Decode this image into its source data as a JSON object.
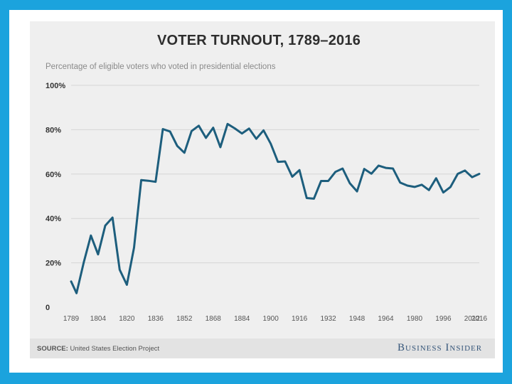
{
  "header": {
    "title": "VOTER TURNOUT, 1789–2016",
    "subtitle": "Percentage of eligible voters who voted in presidential elections"
  },
  "footer": {
    "source_label": "SOURCE:",
    "source_text": "United States Election Project",
    "brand": "Business Insider"
  },
  "colors": {
    "line": "#1d5e7d",
    "background": "#efefef",
    "frame": "#1ba3dd"
  },
  "chart_data": {
    "type": "line",
    "title": "VOTER TURNOUT, 1789–2016",
    "subtitle": "Percentage of eligible voters who voted in presidential elections",
    "xlabel": "",
    "ylabel": "",
    "ylim": [
      0,
      100
    ],
    "xlim": [
      1789,
      2016
    ],
    "grid": true,
    "yticks": [
      0,
      20,
      40,
      60,
      80,
      100
    ],
    "ytick_labels": [
      "0",
      "20%",
      "40%",
      "60%",
      "80%",
      "100%"
    ],
    "xticks": [
      1789,
      1804,
      1820,
      1836,
      1852,
      1868,
      1884,
      1900,
      1916,
      1932,
      1948,
      1964,
      1980,
      1996,
      2012,
      2016
    ],
    "xtick_labels": [
      "1789",
      "1804",
      "1820",
      "1836",
      "1852",
      "1868",
      "1884",
      "1900",
      "1916",
      "1932",
      "1948",
      "1964",
      "1980",
      "1996",
      "2012",
      "2016"
    ],
    "series": [
      {
        "name": "Voter turnout",
        "x": [
          1789,
          1792,
          1796,
          1800,
          1804,
          1808,
          1812,
          1816,
          1820,
          1824,
          1828,
          1832,
          1836,
          1840,
          1844,
          1848,
          1852,
          1856,
          1860,
          1864,
          1868,
          1872,
          1876,
          1880,
          1884,
          1888,
          1892,
          1896,
          1900,
          1904,
          1908,
          1912,
          1916,
          1920,
          1924,
          1928,
          1932,
          1936,
          1940,
          1944,
          1948,
          1952,
          1956,
          1960,
          1964,
          1968,
          1972,
          1976,
          1980,
          1984,
          1988,
          1992,
          1996,
          2000,
          2004,
          2008,
          2012,
          2016
        ],
        "values": [
          11.6,
          6.3,
          20.1,
          32.3,
          23.8,
          36.8,
          40.4,
          16.9,
          10.1,
          26.9,
          57.3,
          57.0,
          56.5,
          80.3,
          79.2,
          72.7,
          69.6,
          79.4,
          81.8,
          76.3,
          80.9,
          72.1,
          82.6,
          80.6,
          78.3,
          80.5,
          75.9,
          79.7,
          73.7,
          65.5,
          65.7,
          58.8,
          61.8,
          49.2,
          48.9,
          56.9,
          56.9,
          61.0,
          62.5,
          55.9,
          52.2,
          62.3,
          60.2,
          63.8,
          62.8,
          62.5,
          56.2,
          54.8,
          54.2,
          55.2,
          52.8,
          58.1,
          51.7,
          54.2,
          60.1,
          61.6,
          58.6,
          60.1
        ]
      }
    ]
  }
}
